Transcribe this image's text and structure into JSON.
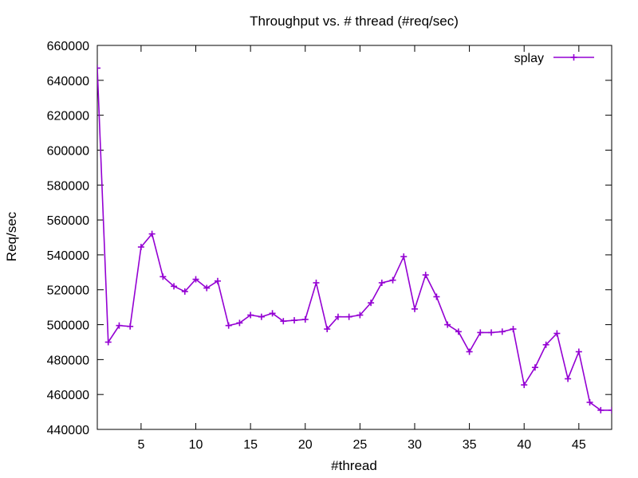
{
  "chart_data": {
    "type": "line",
    "title": "Throughput vs. # thread (#req/sec)",
    "xlabel": "#thread",
    "ylabel": "Req/sec",
    "xlim": [
      1,
      48
    ],
    "ylim": [
      440000,
      660000
    ],
    "xticks": [
      5,
      10,
      15,
      20,
      25,
      30,
      35,
      40,
      45
    ],
    "yticks": [
      440000,
      460000,
      480000,
      500000,
      520000,
      540000,
      560000,
      580000,
      600000,
      620000,
      640000,
      660000
    ],
    "grid": false,
    "legend_position": "top-right",
    "series": [
      {
        "name": "splay",
        "color": "#9400d3",
        "marker": "plus",
        "x": [
          1,
          2,
          3,
          4,
          5,
          6,
          7,
          8,
          9,
          10,
          11,
          12,
          13,
          14,
          15,
          16,
          17,
          18,
          19,
          20,
          21,
          22,
          23,
          24,
          25,
          26,
          27,
          28,
          29,
          30,
          31,
          32,
          33,
          34,
          35,
          36,
          37,
          38,
          39,
          40,
          41,
          42,
          43,
          44,
          45,
          46,
          47,
          48
        ],
        "y": [
          647000,
          490000,
          499500,
          499000,
          544500,
          552000,
          527500,
          522000,
          519000,
          526000,
          521000,
          525000,
          499500,
          501000,
          505500,
          504500,
          506500,
          502000,
          502500,
          503000,
          524000,
          497500,
          504500,
          504500,
          505500,
          512500,
          524000,
          525500,
          539000,
          509000,
          528500,
          516000,
          500000,
          496000,
          484500,
          495500,
          495500,
          496000,
          497500,
          465500,
          475500,
          488500,
          495000,
          469000,
          484500,
          455500,
          451000,
          451000
        ]
      }
    ]
  }
}
